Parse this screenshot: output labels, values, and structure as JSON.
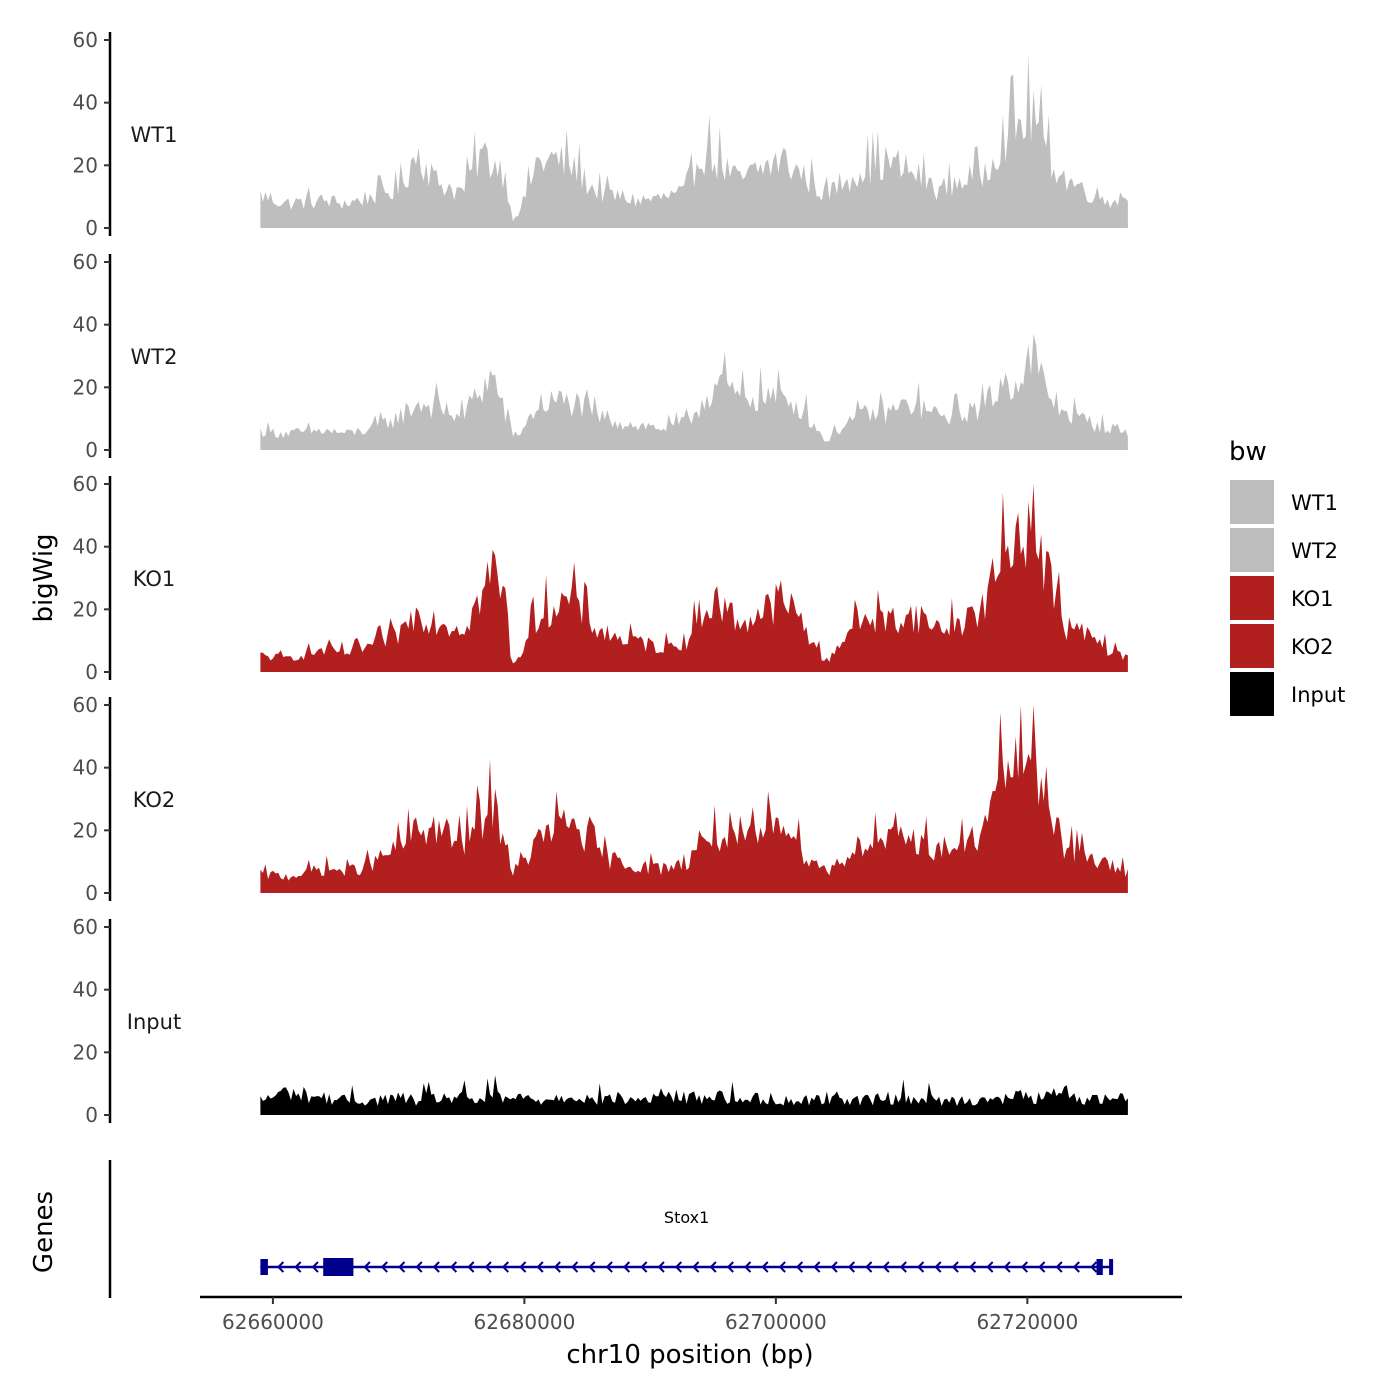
{
  "chart_data": {
    "type": "area",
    "ylabel": "bigWig",
    "genes_label": "Genes",
    "xlabel": "chr10 position (bp)",
    "x_range": [
      62659000,
      62728000
    ],
    "xlim": [
      62654200,
      62732300
    ],
    "x_ticks": [
      62660000,
      62680000,
      62700000,
      62720000
    ],
    "x_tick_labels": [
      "62660000",
      "62680000",
      "62700000",
      "62720000"
    ],
    "ylim": [
      0,
      60
    ],
    "y_ticks": [
      0,
      20,
      40,
      60
    ],
    "y_tick_labels": [
      "0",
      "20",
      "40",
      "60"
    ],
    "legend": {
      "title": "bw",
      "items": [
        {
          "label": "WT1",
          "color": "#bebebe"
        },
        {
          "label": "WT2",
          "color": "#bebebe"
        },
        {
          "label": "KO1",
          "color": "#b21f1f"
        },
        {
          "label": "KO2",
          "color": "#b21f1f"
        },
        {
          "label": "Input",
          "color": "#000000"
        }
      ]
    },
    "tracks": [
      {
        "name": "WT1",
        "color": "#bebebe",
        "x": [
          62659000,
          62661000,
          62664000,
          62666000,
          62668000,
          62670000,
          62671500,
          62673000,
          62675000,
          62676500,
          62677500,
          62678500,
          62679000,
          62679800,
          62681000,
          62682500,
          62684000,
          62685500,
          62687000,
          62689000,
          62691000,
          62693000,
          62694000,
          62695500,
          62697000,
          62699000,
          62700500,
          62702000,
          62704000,
          62705500,
          62707000,
          62709000,
          62711000,
          62713000,
          62715000,
          62716500,
          62718000,
          62719500,
          62720500,
          62721500,
          62723000,
          62725000,
          62726500,
          62728000
        ],
        "values": [
          12,
          9,
          10,
          9,
          12,
          14,
          28,
          17,
          13,
          27,
          24,
          20,
          3,
          8,
          24,
          25,
          22,
          14,
          12,
          10,
          11,
          13,
          29,
          24,
          17,
          22,
          25,
          20,
          12,
          18,
          22,
          24,
          20,
          14,
          18,
          20,
          34,
          38,
          43,
          28,
          18,
          13,
          10,
          12
        ]
      },
      {
        "name": "WT2",
        "color": "#bebebe",
        "x": [
          62659000,
          62661000,
          62664000,
          62666000,
          62668000,
          62670000,
          62671500,
          62673000,
          62675000,
          62676500,
          62677500,
          62678500,
          62679000,
          62679800,
          62681000,
          62682500,
          62684000,
          62685500,
          62687000,
          62689000,
          62691000,
          62693000,
          62694000,
          62695500,
          62697000,
          62699000,
          62700500,
          62702000,
          62704000,
          62705500,
          62707000,
          62709000,
          62711000,
          62713000,
          62715000,
          62716500,
          62718000,
          62719500,
          62720500,
          62721500,
          62723000,
          62725000,
          62726500,
          62728000
        ],
        "values": [
          7,
          6,
          7,
          6,
          8,
          12,
          17,
          16,
          12,
          22,
          27,
          13,
          5,
          7,
          16,
          18,
          17,
          13,
          11,
          9,
          8,
          10,
          17,
          25,
          19,
          20,
          19,
          16,
          3,
          10,
          13,
          14,
          17,
          12,
          14,
          16,
          24,
          27,
          35,
          21,
          14,
          10,
          8,
          7
        ]
      },
      {
        "name": "KO1",
        "color": "#b21f1f",
        "x": [
          62659000,
          62661000,
          62664000,
          62666000,
          62668000,
          62670000,
          62671500,
          62673000,
          62675000,
          62676500,
          62677500,
          62678500,
          62679000,
          62679800,
          62681000,
          62682500,
          62684000,
          62685500,
          62687000,
          62689000,
          62691000,
          62693000,
          62694000,
          62695500,
          62697000,
          62699000,
          62700500,
          62702000,
          62704000,
          62705500,
          62707000,
          62709000,
          62711000,
          62713000,
          62715000,
          62716500,
          62718000,
          62719500,
          62720500,
          62721500,
          62723000,
          62725000,
          62726500,
          62728000
        ],
        "values": [
          6,
          5,
          8,
          7,
          10,
          14,
          22,
          19,
          16,
          27,
          38,
          27,
          2,
          8,
          21,
          25,
          26,
          17,
          13,
          11,
          9,
          12,
          22,
          26,
          18,
          22,
          27,
          19,
          3,
          14,
          20,
          19,
          21,
          16,
          19,
          24,
          42,
          54,
          57,
          38,
          17,
          13,
          8,
          5
        ]
      },
      {
        "name": "KO2",
        "color": "#b21f1f",
        "x": [
          62659000,
          62661000,
          62664000,
          62666000,
          62668000,
          62670000,
          62671500,
          62673000,
          62675000,
          62676500,
          62677500,
          62678500,
          62679000,
          62679800,
          62681000,
          62682500,
          62684000,
          62685500,
          62687000,
          62689000,
          62691000,
          62693000,
          62694000,
          62695500,
          62697000,
          62699000,
          62700500,
          62702000,
          62704000,
          62705500,
          62707000,
          62709000,
          62711000,
          62713000,
          62715000,
          62716500,
          62718000,
          62719500,
          62720500,
          62721500,
          62723000,
          62725000,
          62726500,
          62728000
        ],
        "values": [
          7,
          6,
          9,
          8,
          11,
          17,
          23,
          24,
          18,
          27,
          33,
          20,
          8,
          10,
          19,
          24,
          26,
          16,
          12,
          10,
          9,
          12,
          20,
          21,
          18,
          22,
          30,
          16,
          8,
          13,
          19,
          19,
          20,
          16,
          18,
          22,
          45,
          52,
          48,
          38,
          17,
          13,
          10,
          8
        ]
      },
      {
        "name": "Input",
        "color": "#000000",
        "x": [
          62659000,
          62661000,
          62664000,
          62666000,
          62668000,
          62670000,
          62671500,
          62673000,
          62675000,
          62676500,
          62677500,
          62678500,
          62679000,
          62679800,
          62681000,
          62682500,
          62684000,
          62685500,
          62687000,
          62689000,
          62691000,
          62693000,
          62694000,
          62695500,
          62697000,
          62699000,
          62700500,
          62702000,
          62704000,
          62705500,
          62707000,
          62709000,
          62711000,
          62713000,
          62715000,
          62716500,
          62718000,
          62719500,
          62720500,
          62721500,
          62723000,
          62725000,
          62726500,
          62728000
        ],
        "values": [
          5,
          8,
          6,
          5,
          5,
          6,
          5,
          6,
          6,
          5,
          7,
          5,
          6,
          6,
          5,
          6,
          7,
          5,
          6,
          5,
          7,
          6,
          6,
          7,
          5,
          6,
          5,
          5,
          6,
          6,
          5,
          6,
          6,
          5,
          5,
          6,
          5,
          7,
          6,
          6,
          8,
          5,
          6,
          6
        ]
      }
    ],
    "genes": [
      {
        "name": "Stox1",
        "start": 62659000,
        "end": 62726800,
        "strand": "-",
        "exons": [
          [
            62659000,
            62659600
          ],
          [
            62664000,
            62666400
          ],
          [
            62725500,
            62726000
          ],
          [
            62726500,
            62726800
          ]
        ]
      }
    ]
  }
}
